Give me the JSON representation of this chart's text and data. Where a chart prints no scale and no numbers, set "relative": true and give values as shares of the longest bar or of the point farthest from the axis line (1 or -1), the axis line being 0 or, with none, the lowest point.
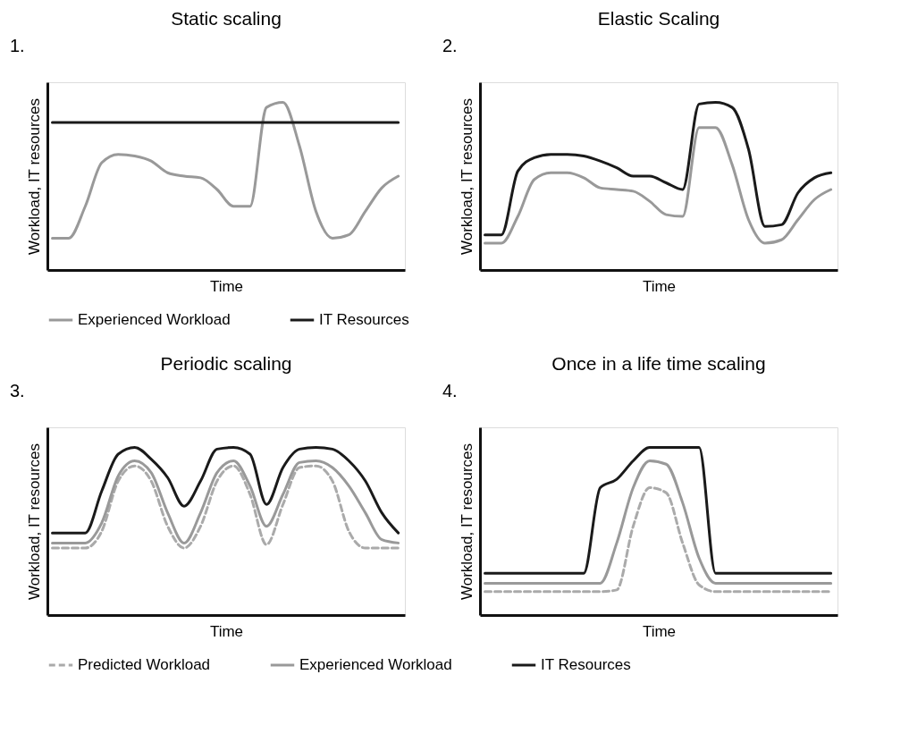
{
  "chart_data": [
    {
      "type": "line",
      "title": "Static scaling",
      "xlabel": "Time",
      "ylabel": "Workload, IT resources",
      "annotations": [
        "1."
      ],
      "relative": true,
      "tick_labels": false,
      "legend": "bottom",
      "categories": [
        null,
        null,
        null,
        null,
        null,
        null,
        null,
        null,
        null,
        null,
        null,
        null,
        null,
        null,
        null,
        null,
        null,
        null,
        null,
        null,
        null,
        null
      ],
      "series": [
        {
          "name": "Experienced Workload",
          "color": "#999999",
          "values": [
            0.19,
            0.19,
            0.38,
            0.64,
            0.69,
            0.68,
            0.65,
            0.58,
            0.56,
            0.55,
            0.48,
            0.38,
            0.38,
            0.97,
            1.0,
            0.74,
            0.35,
            0.19,
            0.21,
            0.35,
            0.49,
            0.56
          ]
        },
        {
          "name": "IT Resources",
          "color": "#1a1a1a",
          "values": [
            0.88,
            0.88,
            0.88,
            0.88,
            0.88,
            0.88,
            0.88,
            0.88,
            0.88,
            0.88,
            0.88,
            0.88,
            0.88,
            0.88,
            0.88,
            0.88,
            0.88,
            0.88,
            0.88,
            0.88,
            0.88,
            0.88
          ]
        }
      ]
    },
    {
      "type": "line",
      "title": "Elastic Scaling",
      "xlabel": "Time",
      "ylabel": "Workload, IT resources",
      "annotations": [
        "2."
      ],
      "relative": true,
      "tick_labels": false,
      "legend": "bottom",
      "categories": [
        null,
        null,
        null,
        null,
        null,
        null,
        null,
        null,
        null,
        null,
        null,
        null,
        null,
        null,
        null,
        null,
        null,
        null,
        null,
        null,
        null,
        null
      ],
      "series": [
        {
          "name": "Experienced Workload",
          "color": "#999999",
          "values": [
            0.16,
            0.16,
            0.32,
            0.54,
            0.58,
            0.58,
            0.55,
            0.49,
            0.48,
            0.47,
            0.41,
            0.33,
            0.32,
            0.85,
            0.85,
            0.63,
            0.3,
            0.16,
            0.18,
            0.3,
            0.42,
            0.48
          ]
        },
        {
          "name": "IT Resources",
          "color": "#1a1a1a",
          "values": [
            0.21,
            0.21,
            0.59,
            0.67,
            0.69,
            0.69,
            0.68,
            0.65,
            0.61,
            0.56,
            0.56,
            0.52,
            0.48,
            0.99,
            1.0,
            0.97,
            0.72,
            0.26,
            0.27,
            0.46,
            0.55,
            0.58
          ]
        }
      ]
    },
    {
      "type": "line",
      "title": "Periodic scaling",
      "xlabel": "Time",
      "ylabel": "Workload, IT resources",
      "annotations": [
        "3."
      ],
      "relative": true,
      "tick_labels": false,
      "legend": "bottom",
      "categories": [
        null,
        null,
        null,
        null,
        null,
        null,
        null,
        null,
        null,
        null,
        null,
        null,
        null,
        null,
        null,
        null,
        null,
        null,
        null,
        null,
        null,
        null
      ],
      "series": [
        {
          "name": "Predicted Workload",
          "color": "#aaaaaa",
          "line_style": "dashed",
          "values": [
            0.4,
            0.4,
            0.4,
            0.5,
            0.8,
            0.89,
            0.8,
            0.53,
            0.4,
            0.53,
            0.8,
            0.89,
            0.72,
            0.42,
            0.66,
            0.88,
            0.89,
            0.8,
            0.5,
            0.4,
            0.4,
            0.4
          ]
        },
        {
          "name": "Experienced Workload",
          "color": "#999999",
          "values": [
            0.43,
            0.43,
            0.43,
            0.55,
            0.83,
            0.92,
            0.85,
            0.61,
            0.43,
            0.61,
            0.85,
            0.92,
            0.77,
            0.53,
            0.72,
            0.91,
            0.92,
            0.88,
            0.77,
            0.61,
            0.45,
            0.43
          ]
        },
        {
          "name": "IT Resources",
          "color": "#1a1a1a",
          "values": [
            0.49,
            0.49,
            0.49,
            0.74,
            0.96,
            1.0,
            0.93,
            0.82,
            0.65,
            0.8,
            0.99,
            1.0,
            0.96,
            0.66,
            0.88,
            0.99,
            1.0,
            0.99,
            0.92,
            0.8,
            0.61,
            0.49
          ]
        }
      ]
    },
    {
      "type": "line",
      "title": "Once in a life time scaling",
      "xlabel": "Time",
      "ylabel": "Workload, IT resources",
      "annotations": [
        "4."
      ],
      "relative": true,
      "tick_labels": false,
      "legend": "bottom",
      "categories": [
        null,
        null,
        null,
        null,
        null,
        null,
        null,
        null,
        null,
        null,
        null,
        null,
        null,
        null,
        null,
        null,
        null,
        null,
        null,
        null,
        null,
        null
      ],
      "series": [
        {
          "name": "Predicted Workload",
          "color": "#aaaaaa",
          "line_style": "dashed",
          "values": [
            0.14,
            0.14,
            0.14,
            0.14,
            0.14,
            0.14,
            0.14,
            0.14,
            0.15,
            0.53,
            0.76,
            0.73,
            0.43,
            0.18,
            0.14,
            0.14,
            0.14,
            0.14,
            0.14,
            0.14,
            0.14,
            0.14
          ]
        },
        {
          "name": "Experienced Workload",
          "color": "#999999",
          "values": [
            0.19,
            0.19,
            0.19,
            0.19,
            0.19,
            0.19,
            0.19,
            0.19,
            0.43,
            0.76,
            0.92,
            0.9,
            0.67,
            0.34,
            0.19,
            0.19,
            0.19,
            0.19,
            0.19,
            0.19,
            0.19,
            0.19
          ]
        },
        {
          "name": "IT Resources",
          "color": "#1a1a1a",
          "values": [
            0.25,
            0.25,
            0.25,
            0.25,
            0.25,
            0.25,
            0.25,
            0.76,
            0.81,
            0.92,
            1.0,
            1.0,
            1.0,
            1.0,
            0.25,
            0.25,
            0.25,
            0.25,
            0.25,
            0.25,
            0.25,
            0.25
          ]
        }
      ]
    }
  ]
}
